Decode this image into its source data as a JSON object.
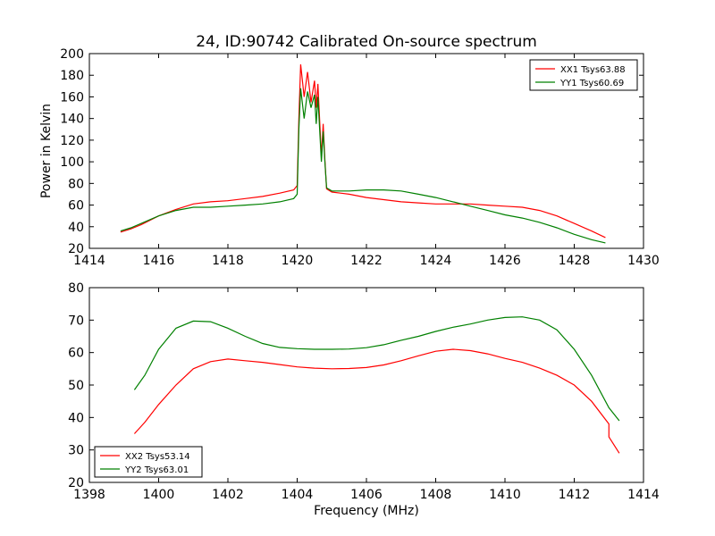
{
  "colors": {
    "red": "#ff0000",
    "green": "#008000"
  },
  "chart_data": [
    {
      "type": "line",
      "title": "24, ID:90742 Calibrated On-source spectrum",
      "xlabel": "",
      "ylabel": "Power in Kelvin",
      "xlim": [
        1414,
        1430
      ],
      "ylim": [
        20,
        200
      ],
      "xticks": [
        "1414",
        "1416",
        "1418",
        "1420",
        "1422",
        "1424",
        "1426",
        "1428",
        "1430"
      ],
      "yticks": [
        "20",
        "40",
        "60",
        "80",
        "100",
        "120",
        "140",
        "160",
        "180",
        "200"
      ],
      "legend_position": "top-right",
      "grid": false,
      "series": [
        {
          "name": "XX1 Tsys63.88",
          "color": "#ff0000",
          "points": [
            [
              1414.9,
              35
            ],
            [
              1415.2,
              38
            ],
            [
              1415.5,
              42
            ],
            [
              1416,
              50
            ],
            [
              1416.5,
              56
            ],
            [
              1417,
              61
            ],
            [
              1417.5,
              63
            ],
            [
              1418,
              64
            ],
            [
              1418.5,
              66
            ],
            [
              1419,
              68
            ],
            [
              1419.5,
              71
            ],
            [
              1419.9,
              74
            ],
            [
              1420.0,
              78
            ],
            [
              1420.05,
              140
            ],
            [
              1420.1,
              190
            ],
            [
              1420.2,
              160
            ],
            [
              1420.3,
              183
            ],
            [
              1420.4,
              155
            ],
            [
              1420.5,
              175
            ],
            [
              1420.55,
              150
            ],
            [
              1420.6,
              172
            ],
            [
              1420.7,
              105
            ],
            [
              1420.75,
              135
            ],
            [
              1420.8,
              102
            ],
            [
              1420.85,
              75
            ],
            [
              1421,
              72
            ],
            [
              1421.5,
              70
            ],
            [
              1422,
              67
            ],
            [
              1422.5,
              65
            ],
            [
              1423,
              63
            ],
            [
              1423.5,
              62
            ],
            [
              1424,
              61
            ],
            [
              1424.5,
              61
            ],
            [
              1425,
              61
            ],
            [
              1425.5,
              60
            ],
            [
              1426,
              59
            ],
            [
              1426.5,
              58
            ],
            [
              1427,
              55
            ],
            [
              1427.5,
              50
            ],
            [
              1428,
              43
            ],
            [
              1428.5,
              36
            ],
            [
              1428.9,
              30
            ]
          ]
        },
        {
          "name": "YY1 Tsys60.69",
          "color": "#008000",
          "points": [
            [
              1414.9,
              36
            ],
            [
              1415.2,
              39
            ],
            [
              1415.5,
              43
            ],
            [
              1416,
              50
            ],
            [
              1416.5,
              55
            ],
            [
              1417,
              58
            ],
            [
              1417.5,
              58
            ],
            [
              1418,
              59
            ],
            [
              1418.5,
              60
            ],
            [
              1419,
              61
            ],
            [
              1419.5,
              63
            ],
            [
              1419.9,
              66
            ],
            [
              1420.0,
              70
            ],
            [
              1420.05,
              130
            ],
            [
              1420.1,
              168
            ],
            [
              1420.2,
              140
            ],
            [
              1420.3,
              165
            ],
            [
              1420.4,
              150
            ],
            [
              1420.5,
              162
            ],
            [
              1420.55,
              135
            ],
            [
              1420.6,
              160
            ],
            [
              1420.7,
              100
            ],
            [
              1420.75,
              128
            ],
            [
              1420.8,
              100
            ],
            [
              1420.85,
              76
            ],
            [
              1421,
              73
            ],
            [
              1421.5,
              73
            ],
            [
              1422,
              74
            ],
            [
              1422.5,
              74
            ],
            [
              1423,
              73
            ],
            [
              1423.5,
              70
            ],
            [
              1424,
              67
            ],
            [
              1424.5,
              63
            ],
            [
              1425,
              59
            ],
            [
              1425.5,
              55
            ],
            [
              1426,
              51
            ],
            [
              1426.5,
              48
            ],
            [
              1427,
              44
            ],
            [
              1427.5,
              39
            ],
            [
              1428,
              33
            ],
            [
              1428.5,
              28
            ],
            [
              1428.9,
              25
            ]
          ]
        }
      ]
    },
    {
      "type": "line",
      "title": "",
      "xlabel": "Frequency (MHz)",
      "ylabel": "",
      "xlim": [
        1398,
        1414
      ],
      "ylim": [
        20,
        80
      ],
      "xticks": [
        "1398",
        "1400",
        "1402",
        "1404",
        "1406",
        "1408",
        "1410",
        "1412",
        "1414"
      ],
      "yticks": [
        "20",
        "30",
        "40",
        "50",
        "60",
        "70",
        "80"
      ],
      "legend_position": "bottom-left",
      "grid": false,
      "series": [
        {
          "name": "XX2 Tsys53.14",
          "color": "#ff0000",
          "points": [
            [
              1399.3,
              35
            ],
            [
              1399.6,
              38.5
            ],
            [
              1400,
              44
            ],
            [
              1400.5,
              50
            ],
            [
              1401,
              55
            ],
            [
              1401.5,
              57.2
            ],
            [
              1402,
              58
            ],
            [
              1402.5,
              57.5
            ],
            [
              1403,
              57
            ],
            [
              1403.5,
              56.3
            ],
            [
              1404,
              55.6
            ],
            [
              1404.5,
              55.2
            ],
            [
              1405,
              55
            ],
            [
              1405.5,
              55.1
            ],
            [
              1406,
              55.4
            ],
            [
              1406.5,
              56.2
            ],
            [
              1407,
              57.5
            ],
            [
              1407.5,
              59
            ],
            [
              1408,
              60.4
            ],
            [
              1408.5,
              61
            ],
            [
              1409,
              60.6
            ],
            [
              1409.5,
              59.6
            ],
            [
              1410,
              58.2
            ],
            [
              1410.5,
              57
            ],
            [
              1411,
              55.2
            ],
            [
              1411.5,
              53
            ],
            [
              1412,
              50
            ],
            [
              1412.5,
              45
            ],
            [
              1413,
              38
            ],
            [
              1413,
              34
            ],
            [
              1413.3,
              29
            ]
          ]
        },
        {
          "name": "YY2 Tsys63.01",
          "color": "#008000",
          "points": [
            [
              1399.3,
              48.5
            ],
            [
              1399.6,
              53
            ],
            [
              1400,
              61
            ],
            [
              1400.5,
              67.5
            ],
            [
              1401,
              69.7
            ],
            [
              1401.5,
              69.5
            ],
            [
              1402,
              67.5
            ],
            [
              1402.5,
              65
            ],
            [
              1403,
              62.8
            ],
            [
              1403.5,
              61.6
            ],
            [
              1404,
              61.2
            ],
            [
              1404.5,
              61
            ],
            [
              1405,
              61
            ],
            [
              1405.5,
              61.1
            ],
            [
              1406,
              61.5
            ],
            [
              1406.5,
              62.4
            ],
            [
              1407,
              63.8
            ],
            [
              1407.5,
              65
            ],
            [
              1408,
              66.5
            ],
            [
              1408.5,
              67.8
            ],
            [
              1409,
              68.8
            ],
            [
              1409.5,
              70
            ],
            [
              1410,
              70.8
            ],
            [
              1410.5,
              71
            ],
            [
              1411,
              70
            ],
            [
              1411.5,
              67
            ],
            [
              1412,
              61
            ],
            [
              1412.5,
              53
            ],
            [
              1413,
              43
            ],
            [
              1413.3,
              39
            ]
          ]
        }
      ]
    }
  ]
}
